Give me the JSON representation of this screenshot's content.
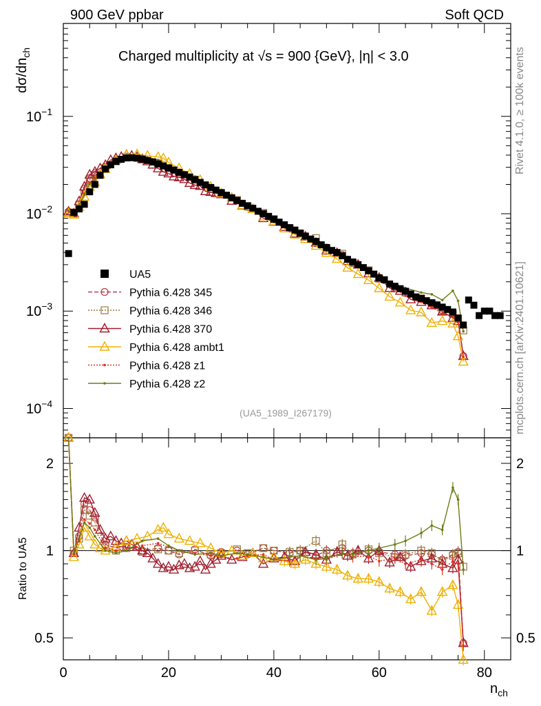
{
  "header": {
    "left_title": "900 GeV ppbar",
    "right_title": "Soft QCD"
  },
  "side_labels": {
    "rivet": "Rivet 4.1.0, ≥ 100k events",
    "mcplots": "mcplots.cern.ch [arXiv:2401.10621]"
  },
  "colors": {
    "UA5": "#000000",
    "p345": "#c03a4a",
    "p346": "#9a7a3c",
    "p370": "#a01c2c",
    "ambt1": "#f0b000",
    "z1": "#e03020",
    "z2": "#6e7a14"
  },
  "chart_data": [
    {
      "type": "line",
      "title": "Charged multiplicity at √s = 900 {GeV}, |η| < 3.0",
      "title_pre": "Charged multiplicity at ",
      "title_sqrt": "√",
      "title_post": "s = 900 {GeV}, |η| < 3.0",
      "ylabel": "dσ/dn",
      "ylabel_sub": "ch",
      "xlabel": "n",
      "xlabel_sub": "ch",
      "reference": "(UA5_1989_I267179)",
      "yscale": "log",
      "ylim": [
        5e-05,
        0.9
      ],
      "xlim": [
        0,
        85
      ],
      "ytick_labels": [
        {
          "value": 0.1,
          "mantissa": "10",
          "exp": "−1"
        },
        {
          "value": 0.01,
          "mantissa": "10",
          "exp": "−2"
        },
        {
          "value": 0.001,
          "mantissa": "10",
          "exp": "−3"
        },
        {
          "value": 0.0001,
          "mantissa": "10",
          "exp": "−4"
        }
      ],
      "legend_position": "left-center",
      "legend": [
        {
          "key": "UA5",
          "label": "UA5"
        },
        {
          "key": "p345",
          "label": "Pythia 6.428 345"
        },
        {
          "key": "p346",
          "label": "Pythia 6.428 346"
        },
        {
          "key": "p370",
          "label": "Pythia 6.428 370"
        },
        {
          "key": "ambt1",
          "label": "Pythia 6.428 ambt1"
        },
        {
          "key": "z1",
          "label": "Pythia 6.428 z1"
        },
        {
          "key": "z2",
          "label": "Pythia 6.428 z2"
        }
      ],
      "data": {
        "name": "UA5",
        "x": [
          1,
          2,
          3,
          4,
          5,
          6,
          7,
          8,
          9,
          10,
          11,
          12,
          13,
          14,
          15,
          16,
          17,
          18,
          19,
          20,
          21,
          22,
          23,
          24,
          25,
          26,
          27,
          28,
          29,
          30,
          31,
          32,
          33,
          34,
          35,
          36,
          37,
          38,
          39,
          40,
          41,
          42,
          43,
          44,
          45,
          46,
          47,
          48,
          49,
          50,
          51,
          52,
          53,
          54,
          55,
          56,
          57,
          58,
          59,
          60,
          61,
          62,
          63,
          64,
          65,
          66,
          67,
          68,
          69,
          70,
          71,
          72,
          73,
          74,
          75,
          76,
          77,
          78,
          79,
          80,
          81,
          82,
          83
        ],
        "y": [
          0.0039,
          0.0103,
          0.0112,
          0.0125,
          0.0168,
          0.02,
          0.0248,
          0.0288,
          0.0318,
          0.0345,
          0.0362,
          0.0374,
          0.0376,
          0.0372,
          0.0364,
          0.0352,
          0.034,
          0.0325,
          0.031,
          0.0295,
          0.0281,
          0.0266,
          0.0252,
          0.0238,
          0.0224,
          0.021,
          0.0198,
          0.0186,
          0.0175,
          0.0165,
          0.0155,
          0.0146,
          0.0137,
          0.0128,
          0.0121,
          0.0114,
          0.0106,
          0.01,
          0.0094,
          0.0088,
          0.0082,
          0.0077,
          0.0072,
          0.0068,
          0.0063,
          0.0059,
          0.0055,
          0.0052,
          0.0048,
          0.0045,
          0.0042,
          0.004,
          0.0037,
          0.0034,
          0.0032,
          0.003,
          0.0028,
          0.0026,
          0.0024,
          0.0022,
          0.0021,
          0.0019,
          0.0018,
          0.0017,
          0.0016,
          0.0015,
          0.0014,
          0.00135,
          0.00128,
          0.00122,
          0.00116,
          0.0011,
          0.00104,
          0.00098,
          0.00085,
          0.00072,
          0.0013,
          0.00115,
          0.0009,
          0.001,
          0.001,
          0.0009,
          0.0009
        ]
      }
    },
    {
      "type": "line",
      "ylabel": "Ratio to UA5",
      "yscale": "log",
      "ylim": [
        0.42,
        2.45
      ],
      "xlim": [
        0,
        85
      ],
      "reference_line": 1,
      "ytick_labels": [
        {
          "value": 2,
          "label": "2"
        },
        {
          "value": 1,
          "label": "1"
        },
        {
          "value": 0.5,
          "label": "0.5"
        }
      ],
      "xtick_labels": [
        {
          "value": 0,
          "label": "0"
        },
        {
          "value": 20,
          "label": "20"
        },
        {
          "value": 40,
          "label": "40"
        },
        {
          "value": 60,
          "label": "60"
        },
        {
          "value": 80,
          "label": "80"
        }
      ],
      "series": [
        {
          "key": "p345",
          "name": "Pythia 6.428 345",
          "marker": "circle",
          "dash": "6,3",
          "x": [
            1,
            2,
            3,
            4,
            5,
            6,
            8,
            10,
            12,
            15,
            18,
            20,
            22,
            25,
            28,
            30,
            33,
            35,
            38,
            40,
            43,
            45,
            48,
            50,
            53,
            55,
            58,
            60,
            63,
            65,
            68,
            70,
            72,
            74,
            75,
            76
          ],
          "y": [
            2.7,
            0.98,
            1.12,
            1.45,
            1.38,
            1.3,
            1.05,
            1.02,
            1.03,
            1.0,
            1.02,
            1.0,
            0.97,
            1.01,
            0.96,
            0.99,
            1.0,
            0.97,
            1.02,
            1.0,
            0.98,
            1.0,
            0.96,
            1.0,
            1.02,
            0.98,
            1.0,
            0.99,
            0.97,
            0.96,
            0.98,
            0.97,
            0.93,
            0.97,
            0.99,
            0.48
          ]
        },
        {
          "key": "p346",
          "name": "Pythia 6.428 346",
          "marker": "square",
          "dash": "2,2",
          "x": [
            1,
            2,
            3,
            4,
            5,
            6,
            8,
            10,
            12,
            15,
            18,
            20,
            22,
            25,
            28,
            30,
            33,
            35,
            38,
            40,
            43,
            45,
            48,
            50,
            53,
            55,
            58,
            60,
            63,
            65,
            68,
            70,
            72,
            74,
            75,
            76
          ],
          "y": [
            2.6,
            1.0,
            1.1,
            1.38,
            1.32,
            1.25,
            1.03,
            1.0,
            1.02,
            0.99,
            1.01,
            1.0,
            0.98,
            1.0,
            0.97,
            0.98,
            1.01,
            0.98,
            1.02,
            1.0,
            0.99,
            1.0,
            1.08,
            0.98,
            1.05,
            0.97,
            1.01,
            0.98,
            0.95,
            0.97,
            1.0,
            0.98,
            0.92,
            0.96,
            0.98,
            0.88
          ]
        },
        {
          "key": "p370",
          "name": "Pythia 6.428 370",
          "marker": "triangle",
          "dash": "",
          "x": [
            1,
            2,
            3,
            4,
            5,
            6,
            7,
            8,
            9,
            10,
            11,
            12,
            13,
            14,
            15,
            16,
            17,
            18,
            19,
            20,
            21,
            22,
            23,
            24,
            25,
            26,
            27,
            28,
            29,
            30,
            32,
            34,
            36,
            38,
            40,
            42,
            44,
            46,
            48,
            50,
            52,
            54,
            56,
            58,
            60,
            62,
            64,
            66,
            68,
            70,
            72,
            74,
            75,
            76
          ],
          "y": [
            2.7,
            0.98,
            1.2,
            1.52,
            1.5,
            1.35,
            1.18,
            1.1,
            1.12,
            1.08,
            1.06,
            1.08,
            1.05,
            1.03,
            1.0,
            0.98,
            0.94,
            0.9,
            0.87,
            0.88,
            0.86,
            0.89,
            0.9,
            0.87,
            0.88,
            0.92,
            0.86,
            0.9,
            0.93,
            0.96,
            0.93,
            0.95,
            0.98,
            0.9,
            0.94,
            0.95,
            0.92,
            0.99,
            0.97,
            0.93,
            0.99,
            0.96,
            1.0,
            0.94,
            1.0,
            0.91,
            0.95,
            0.88,
            0.92,
            0.94,
            0.9,
            0.87,
            0.93,
            0.48
          ]
        },
        {
          "key": "ambt1",
          "name": "Pythia 6.428 ambt1",
          "marker": "triangle",
          "dash": "",
          "x": [
            1,
            2,
            3,
            4,
            5,
            6,
            7,
            8,
            10,
            12,
            14,
            16,
            18,
            19,
            20,
            22,
            24,
            26,
            28,
            30,
            32,
            34,
            36,
            38,
            40,
            42,
            44,
            46,
            48,
            50,
            52,
            54,
            56,
            58,
            60,
            62,
            64,
            66,
            68,
            70,
            72,
            74,
            75,
            76
          ],
          "y": [
            2.6,
            0.95,
            1.05,
            1.2,
            1.12,
            1.05,
            1.02,
            1.0,
            1.03,
            1.08,
            1.1,
            1.12,
            1.18,
            1.2,
            1.14,
            1.1,
            1.08,
            1.06,
            1.02,
            0.98,
            1.0,
            0.96,
            0.98,
            0.94,
            0.95,
            0.92,
            0.9,
            0.93,
            0.9,
            0.88,
            0.86,
            0.82,
            0.8,
            0.8,
            0.78,
            0.74,
            0.72,
            0.68,
            0.72,
            0.62,
            0.72,
            0.76,
            0.65,
            0.42
          ]
        },
        {
          "key": "z1",
          "name": "Pythia 6.428 z1",
          "marker": "dot",
          "dash": "2,2",
          "x": [
            1,
            2,
            3,
            4,
            5,
            6,
            8,
            10,
            12,
            15,
            18,
            20,
            22,
            25,
            28,
            30,
            33,
            35,
            38,
            40,
            43,
            45,
            48,
            50,
            53,
            55,
            58,
            60,
            63,
            65,
            68,
            70,
            72,
            74,
            75,
            76
          ],
          "y": [
            2.7,
            0.97,
            1.08,
            1.28,
            1.24,
            1.18,
            1.02,
            1.0,
            1.02,
            1.04,
            1.06,
            1.03,
            1.0,
            0.98,
            0.96,
            0.95,
            0.94,
            0.96,
            0.97,
            0.93,
            0.92,
            0.96,
            0.94,
            0.93,
            0.98,
            0.95,
            0.96,
            0.92,
            0.94,
            0.9,
            0.93,
            0.9,
            0.86,
            0.92,
            0.9,
            0.47
          ]
        },
        {
          "key": "z2",
          "name": "Pythia 6.428 z2",
          "marker": "dot",
          "dash": "",
          "x": [
            1,
            2,
            3,
            4,
            5,
            6,
            8,
            10,
            12,
            15,
            18,
            20,
            22,
            25,
            28,
            30,
            33,
            35,
            38,
            40,
            43,
            45,
            48,
            50,
            53,
            55,
            58,
            60,
            63,
            65,
            68,
            70,
            72,
            74,
            75,
            76
          ],
          "y": [
            2.75,
            0.98,
            1.1,
            1.25,
            1.2,
            1.12,
            1.0,
            0.98,
            1.0,
            1.08,
            1.1,
            1.04,
            1.0,
            0.97,
            0.98,
            0.96,
            0.98,
            0.97,
            0.95,
            0.93,
            0.95,
            0.96,
            0.93,
            0.94,
            0.98,
            0.97,
            1.0,
            1.02,
            1.05,
            1.08,
            1.15,
            1.22,
            1.18,
            1.65,
            1.5,
            0.86
          ]
        }
      ]
    }
  ]
}
